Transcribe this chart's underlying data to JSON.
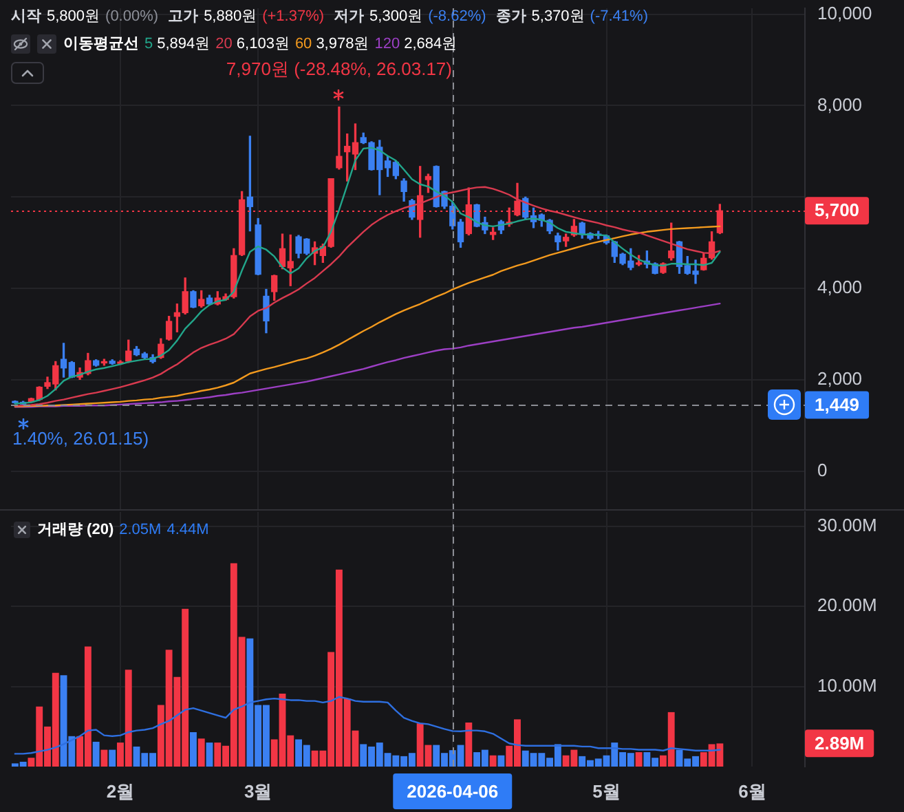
{
  "chart_data": [
    {
      "type": "candlestick",
      "categories": [
        null,
        null,
        null,
        null,
        null,
        null,
        null,
        null,
        null,
        null,
        null,
        null,
        null,
        null,
        null,
        null,
        null,
        null,
        null,
        null,
        null,
        null,
        null,
        null,
        null,
        null,
        null,
        null,
        null,
        null,
        null,
        null,
        null,
        null,
        null,
        null,
        null,
        null,
        null,
        null,
        null,
        null,
        null,
        null,
        null,
        null,
        null,
        null,
        null,
        null,
        null,
        null,
        null,
        null,
        null,
        null,
        null,
        null,
        null,
        null,
        null,
        null,
        null,
        null,
        null,
        null,
        null,
        null,
        null,
        null,
        null,
        null,
        null,
        null,
        null,
        null,
        null,
        null,
        null,
        null,
        null,
        null,
        null,
        null,
        null,
        null,
        null,
        null,
        null,
        null,
        null,
        null,
        null,
        null,
        null,
        null,
        null,
        null
      ],
      "ohlc": [
        [
          1520,
          1540,
          1490,
          1500
        ],
        [
          1510,
          1530,
          1413,
          1470
        ],
        [
          1520,
          1600,
          1510,
          1590
        ],
        [
          1570,
          1850,
          1550,
          1840
        ],
        [
          1860,
          2060,
          1810,
          1940
        ],
        [
          1910,
          2400,
          1780,
          2310
        ],
        [
          2450,
          2800,
          2060,
          2260
        ],
        [
          2380,
          2400,
          2050,
          2060
        ],
        [
          2060,
          2260,
          2010,
          2160
        ],
        [
          2140,
          2580,
          2110,
          2420
        ],
        [
          2420,
          2440,
          2300,
          2320
        ],
        [
          2370,
          2450,
          2320,
          2380
        ],
        [
          2410,
          2440,
          2340,
          2360
        ],
        [
          2360,
          2420,
          2340,
          2390
        ],
        [
          2410,
          2870,
          2380,
          2630
        ],
        [
          2670,
          2730,
          2530,
          2550
        ],
        [
          2570,
          2600,
          2470,
          2490
        ],
        [
          2490,
          2550,
          2370,
          2400
        ],
        [
          2490,
          2900,
          2470,
          2780
        ],
        [
          2890,
          3390,
          2870,
          3280
        ],
        [
          3390,
          3660,
          3050,
          3470
        ],
        [
          3470,
          4230,
          3440,
          3930
        ],
        [
          3930,
          3950,
          3580,
          3590
        ],
        [
          3620,
          3950,
          3590,
          3760
        ],
        [
          3790,
          3850,
          3640,
          3660
        ],
        [
          3660,
          3930,
          3640,
          3790
        ],
        [
          3760,
          3880,
          3740,
          3820
        ],
        [
          3820,
          4870,
          3790,
          4720
        ],
        [
          4740,
          6120,
          4720,
          5940
        ],
        [
          6000,
          7330,
          5260,
          5790
        ],
        [
          5390,
          5530,
          4300,
          4310
        ],
        [
          3830,
          3980,
          3030,
          3290
        ],
        [
          3930,
          4290,
          3740,
          4280
        ],
        [
          4480,
          5190,
          4430,
          4870
        ],
        [
          4450,
          5170,
          4060,
          4590
        ],
        [
          5130,
          5160,
          4670,
          4770
        ],
        [
          5080,
          5090,
          4740,
          4770
        ],
        [
          4770,
          5020,
          4520,
          4890
        ],
        [
          4720,
          4970,
          4570,
          4920
        ],
        [
          4920,
          6400,
          4900,
          6400
        ],
        [
          6640,
          7970,
          6610,
          6890
        ],
        [
          6990,
          7380,
          6350,
          7110
        ],
        [
          6940,
          7600,
          6600,
          7190
        ],
        [
          7300,
          7400,
          7170,
          7190
        ],
        [
          7190,
          7210,
          6590,
          6600
        ],
        [
          7090,
          7240,
          6050,
          6600
        ],
        [
          6790,
          6890,
          6450,
          6640
        ],
        [
          6760,
          6790,
          6400,
          6470
        ],
        [
          6350,
          6400,
          5910,
          6120
        ],
        [
          5920,
          5950,
          5510,
          5560
        ],
        [
          5510,
          6670,
          5120,
          6030
        ],
        [
          6380,
          6500,
          6100,
          6450
        ],
        [
          6670,
          6680,
          5780,
          5790
        ],
        [
          6120,
          6130,
          5750,
          5800
        ],
        [
          5800,
          5880,
          5300,
          5370
        ],
        [
          5450,
          5510,
          4900,
          5020
        ],
        [
          5200,
          6200,
          5170,
          5830
        ],
        [
          5830,
          5840,
          5350,
          5360
        ],
        [
          5440,
          5560,
          5200,
          5280
        ],
        [
          5180,
          5330,
          5070,
          5230
        ],
        [
          5460,
          5490,
          5200,
          5280
        ],
        [
          5410,
          5760,
          5360,
          5450
        ],
        [
          5610,
          6300,
          5590,
          5910
        ],
        [
          5970,
          6000,
          5510,
          5560
        ],
        [
          5590,
          5760,
          5330,
          5460
        ],
        [
          5610,
          5630,
          5360,
          5490
        ],
        [
          5490,
          5510,
          5200,
          5260
        ],
        [
          5150,
          5210,
          4840,
          5020
        ],
        [
          5040,
          5190,
          4920,
          5120
        ],
        [
          5170,
          5510,
          5140,
          5360
        ],
        [
          5430,
          5450,
          5100,
          5200
        ],
        [
          5200,
          5220,
          5070,
          5100
        ],
        [
          5170,
          5250,
          5090,
          5160
        ],
        [
          5150,
          5170,
          4970,
          5000
        ],
        [
          5020,
          5030,
          4570,
          4700
        ],
        [
          4750,
          4770,
          4520,
          4550
        ],
        [
          4600,
          4870,
          4410,
          4460
        ],
        [
          4530,
          4720,
          4500,
          4560
        ],
        [
          4600,
          4820,
          4450,
          4530
        ],
        [
          4540,
          4560,
          4320,
          4330
        ],
        [
          4350,
          4560,
          4330,
          4540
        ],
        [
          4670,
          5430,
          4620,
          4820
        ],
        [
          5020,
          5030,
          4330,
          4480
        ],
        [
          4500,
          4700,
          4310,
          4330
        ],
        [
          4380,
          4620,
          4110,
          4310
        ],
        [
          4410,
          4760,
          4400,
          4660
        ],
        [
          4670,
          5240,
          4640,
          5020
        ],
        [
          5220,
          5840,
          5200,
          5700
        ],
        null,
        null,
        null,
        null,
        null,
        null,
        null,
        null,
        null,
        null
      ],
      "colors": [
        "#3b80f2",
        "#3b80f2",
        "#f23645",
        "#f23645",
        "#f23645",
        "#f23645",
        "#3b80f2",
        "#3b80f2",
        "#f23645",
        "#f23645",
        "#3b80f2",
        "#f23645",
        "#3b80f2",
        "#f23645",
        "#f23645",
        "#3b80f2",
        "#3b80f2",
        "#3b80f2",
        "#f23645",
        "#f23645",
        "#f23645",
        "#f23645",
        "#3b80f2",
        "#f23645",
        "#3b80f2",
        "#f23645",
        "#f23645",
        "#f23645",
        "#f23645",
        "#3b80f2",
        "#3b80f2",
        "#3b80f2",
        "#f23645",
        "#f23645",
        "#f23645",
        "#3b80f2",
        "#3b80f2",
        "#f23645",
        "#f23645",
        "#f23645",
        "#f23645",
        "#f23645",
        "#f23645",
        "#3b80f2",
        "#3b80f2",
        "#3b80f2",
        "#3b80f2",
        "#3b80f2",
        "#3b80f2",
        "#3b80f2",
        "#f23645",
        "#f23645",
        "#3b80f2",
        "#3b80f2",
        "#3b80f2",
        "#3b80f2",
        "#f23645",
        "#3b80f2",
        "#3b80f2",
        "#f23645",
        "#3b80f2",
        "#f23645",
        "#f23645",
        "#3b80f2",
        "#3b80f2",
        "#3b80f2",
        "#3b80f2",
        "#3b80f2",
        "#f23645",
        "#f23645",
        "#3b80f2",
        "#3b80f2",
        "#3b80f2",
        "#3b80f2",
        "#3b80f2",
        "#3b80f2",
        "#3b80f2",
        "#f23645",
        "#3b80f2",
        "#3b80f2",
        "#f23645",
        "#f23645",
        "#3b80f2",
        "#3b80f2",
        "#3b80f2",
        "#f23645",
        "#f23645",
        "#f23645",
        null,
        null,
        null,
        null,
        null,
        null,
        null,
        null,
        null,
        null
      ],
      "series": [
        {
          "type": "line",
          "name": "5",
          "color": "#22a68b",
          "values": [
            1480,
            1490,
            1510,
            1560,
            1650,
            1800,
            1980,
            2070,
            2110,
            2180,
            2230,
            2260,
            2300,
            2340,
            2390,
            2420,
            2450,
            2460,
            2530,
            2650,
            2860,
            3120,
            3300,
            3500,
            3640,
            3720,
            3750,
            3930,
            4390,
            4800,
            4920,
            4850,
            4700,
            4460,
            4330,
            4440,
            4660,
            4820,
            4900,
            5240,
            5720,
            6260,
            6800,
            7060,
            7080,
            7020,
            6900,
            6800,
            6600,
            6390,
            6280,
            6230,
            6120,
            6030,
            5894,
            5640,
            5560,
            5450,
            5380,
            5360,
            5390,
            5420,
            5470,
            5510,
            5530,
            5500,
            5440,
            5320,
            5240,
            5210,
            5180,
            5180,
            5170,
            5160,
            5010,
            4870,
            4740,
            4630,
            4560,
            4510,
            4500,
            4540,
            4540,
            4530,
            4530,
            4510,
            4560,
            4800,
            null,
            null,
            null,
            null,
            null,
            null,
            null,
            null,
            null,
            null
          ]
        },
        {
          "type": "line",
          "name": "20",
          "color": "#d93a4f",
          "values": [
            1430,
            1440,
            1450,
            1470,
            1500,
            1540,
            1570,
            1610,
            1650,
            1690,
            1720,
            1760,
            1800,
            1840,
            1890,
            1940,
            1990,
            2050,
            2130,
            2240,
            2340,
            2470,
            2600,
            2700,
            2770,
            2830,
            2900,
            3000,
            3190,
            3390,
            3510,
            3570,
            3690,
            3790,
            3880,
            3980,
            4110,
            4230,
            4380,
            4530,
            4700,
            4900,
            5070,
            5240,
            5390,
            5510,
            5610,
            5690,
            5760,
            5810,
            5860,
            5930,
            6000,
            6070,
            6103,
            6140,
            6180,
            6210,
            6220,
            6180,
            6120,
            6050,
            5950,
            5880,
            5810,
            5750,
            5700,
            5660,
            5610,
            5560,
            5510,
            5470,
            5430,
            5380,
            5340,
            5290,
            5250,
            5220,
            5160,
            5100,
            5040,
            4980,
            4920,
            4860,
            4820,
            4780,
            4770,
            4820,
            null,
            null,
            null,
            null,
            null,
            null,
            null,
            null,
            null,
            null
          ]
        },
        {
          "type": "line",
          "name": "60",
          "color": "#f39a1e",
          "values": [
            1420,
            1420,
            1430,
            1430,
            1440,
            1440,
            1450,
            1460,
            1470,
            1480,
            1490,
            1500,
            1510,
            1520,
            1540,
            1550,
            1570,
            1580,
            1610,
            1630,
            1650,
            1690,
            1720,
            1760,
            1790,
            1830,
            1880,
            1940,
            2040,
            2140,
            2190,
            2240,
            2280,
            2330,
            2380,
            2430,
            2470,
            2530,
            2600,
            2680,
            2770,
            2870,
            2970,
            3070,
            3160,
            3260,
            3350,
            3440,
            3520,
            3590,
            3660,
            3740,
            3820,
            3890,
            3978,
            4050,
            4120,
            4180,
            4240,
            4300,
            4380,
            4440,
            4500,
            4550,
            4610,
            4670,
            4730,
            4780,
            4830,
            4880,
            4930,
            4980,
            5020,
            5060,
            5100,
            5140,
            5180,
            5210,
            5240,
            5260,
            5280,
            5300,
            5310,
            5320,
            5330,
            5340,
            5350,
            5360,
            null,
            null,
            null,
            null,
            null,
            null,
            null,
            null,
            null,
            null
          ]
        },
        {
          "type": "line",
          "name": "120",
          "color": "#9c3fc4",
          "values": [
            1410,
            1410,
            1410,
            1420,
            1420,
            1420,
            1430,
            1430,
            1430,
            1440,
            1440,
            1440,
            1450,
            1460,
            1470,
            1480,
            1490,
            1500,
            1510,
            1530,
            1540,
            1560,
            1580,
            1600,
            1620,
            1650,
            1670,
            1700,
            1720,
            1750,
            1780,
            1810,
            1840,
            1870,
            1900,
            1930,
            1960,
            2000,
            2040,
            2080,
            2120,
            2160,
            2200,
            2240,
            2290,
            2340,
            2390,
            2430,
            2480,
            2520,
            2560,
            2600,
            2640,
            2670,
            2684,
            2710,
            2750,
            2780,
            2810,
            2840,
            2870,
            2900,
            2930,
            2960,
            2990,
            3020,
            3050,
            3080,
            3110,
            3140,
            3160,
            3190,
            3220,
            3250,
            3280,
            3310,
            3340,
            3370,
            3400,
            3430,
            3460,
            3490,
            3520,
            3550,
            3580,
            3610,
            3640,
            3670,
            null,
            null,
            null,
            null,
            null,
            null,
            null,
            null,
            null,
            null
          ]
        }
      ],
      "ylim": [
        -830,
        10130
      ],
      "yticks": [
        0,
        {
          "value": 2000,
          "label": "2,000"
        },
        {
          "value": 4000,
          "label": "4,000"
        },
        {
          "value": 6000,
          "label": null
        },
        {
          "value": 8000,
          "label": "8,000"
        },
        {
          "value": 10000,
          "label": "10,000"
        }
      ],
      "grid": true,
      "legend": "top left",
      "legend_title": "이동평균선",
      "tick_labels": "y",
      "ref_lines": [
        {
          "axis": "y",
          "value": 5700,
          "color": "#f23645",
          "line_style": "dotted"
        },
        {
          "axis": "y",
          "value": 1449,
          "line_style": "dashed"
        }
      ],
      "annotations": [
        "시작",
        "5,800원",
        "(0.00%)",
        "고가",
        "5,880원",
        "(+1.37%)",
        "저가",
        "5,300원",
        "(-8.62%)",
        "종가",
        "5,370원",
        "(-7.41%)",
        "5,894원",
        "6,103원",
        "3,978원",
        "2,684원",
        "7,970원 (-28.48%, 26.03.17)",
        "1.40%, 26.01.15)",
        "5,700",
        "1,449"
      ]
    },
    {
      "type": "bar",
      "title": "거래량 (20)",
      "categories": [
        null,
        null,
        null,
        null,
        null,
        null,
        null,
        null,
        null,
        null,
        null,
        null,
        null,
        "2월",
        null,
        null,
        null,
        null,
        null,
        null,
        null,
        null,
        null,
        null,
        null,
        null,
        null,
        null,
        null,
        null,
        "3월",
        null,
        null,
        null,
        null,
        null,
        null,
        null,
        null,
        null,
        null,
        null,
        null,
        null,
        null,
        null,
        null,
        null,
        null,
        null,
        null,
        null,
        null,
        null,
        "2026-04-06",
        null,
        null,
        null,
        null,
        null,
        null,
        null,
        null,
        null,
        null,
        null,
        null,
        null,
        null,
        null,
        null,
        null,
        null,
        "5월",
        null,
        null,
        null,
        null,
        null,
        null,
        null,
        null,
        null,
        null,
        null,
        null,
        null,
        null,
        null,
        null,
        null,
        "6월",
        null,
        null,
        null,
        null,
        null,
        null
      ],
      "series": [
        {
          "colors": [
            "#3b80f2",
            "#3b80f2",
            "#f23645",
            "#f23645",
            "#f23645",
            "#f23645",
            "#3b80f2",
            "#3b80f2",
            "#f23645",
            "#f23645",
            "#3b80f2",
            "#f23645",
            "#3b80f2",
            "#f23645",
            "#f23645",
            "#3b80f2",
            "#3b80f2",
            "#3b80f2",
            "#f23645",
            "#f23645",
            "#f23645",
            "#f23645",
            "#3b80f2",
            "#f23645",
            "#3b80f2",
            "#f23645",
            "#f23645",
            "#f23645",
            "#f23645",
            "#3b80f2",
            "#3b80f2",
            "#3b80f2",
            "#f23645",
            "#f23645",
            "#f23645",
            "#3b80f2",
            "#3b80f2",
            "#f23645",
            "#f23645",
            "#f23645",
            "#f23645",
            "#f23645",
            "#f23645",
            "#3b80f2",
            "#3b80f2",
            "#3b80f2",
            "#3b80f2",
            "#3b80f2",
            "#3b80f2",
            "#3b80f2",
            "#f23645",
            "#f23645",
            "#3b80f2",
            "#3b80f2",
            "#3b80f2",
            "#3b80f2",
            "#f23645",
            "#3b80f2",
            "#3b80f2",
            "#f23645",
            "#3b80f2",
            "#f23645",
            "#f23645",
            "#3b80f2",
            "#3b80f2",
            "#3b80f2",
            "#3b80f2",
            "#3b80f2",
            "#f23645",
            "#f23645",
            "#3b80f2",
            "#3b80f2",
            "#3b80f2",
            "#3b80f2",
            "#3b80f2",
            "#3b80f2",
            "#3b80f2",
            "#f23645",
            "#3b80f2",
            "#3b80f2",
            "#f23645",
            "#f23645",
            "#3b80f2",
            "#3b80f2",
            "#3b80f2",
            "#f23645",
            "#f23645",
            "#f23645",
            null,
            null,
            null,
            null,
            null,
            null,
            null,
            null,
            null,
            null
          ],
          "values": [
            0.4,
            0.6,
            1.1,
            7.5,
            5.0,
            11.7,
            11.4,
            3.8,
            3.8,
            15.0,
            3.1,
            2.1,
            2.1,
            3.0,
            12.1,
            2.5,
            1.7,
            1.7,
            7.7,
            14.6,
            11.2,
            19.7,
            4.3,
            3.5,
            3.0,
            3.0,
            2.6,
            25.4,
            16.2,
            16.0,
            7.7,
            7.7,
            3.4,
            9.1,
            3.9,
            3.4,
            2.7,
            2.0,
            2.0,
            14.3,
            24.6,
            8.5,
            4.5,
            2.8,
            2.5,
            3.0,
            1.7,
            1.4,
            1.3,
            1.7,
            5.4,
            2.7,
            2.7,
            1.7,
            2.05,
            2.7,
            5.5,
            1.8,
            2.1,
            1.4,
            1.4,
            2.6,
            5.9,
            2.0,
            1.7,
            1.7,
            1.1,
            2.8,
            1.4,
            2.1,
            1.3,
            0.8,
            1.0,
            1.4,
            3.0,
            1.8,
            1.7,
            1.8,
            1.8,
            1.1,
            1.4,
            6.8,
            2.1,
            1.0,
            1.3,
            1.8,
            2.8,
            2.89,
            null,
            null,
            null,
            null,
            null,
            null,
            null,
            null,
            null,
            null
          ]
        },
        {
          "type": "line",
          "color": "#2e6fe0",
          "values": [
            1.6,
            1.6,
            1.7,
            1.9,
            2.1,
            2.4,
            2.8,
            3.3,
            3.8,
            4.5,
            4.6,
            3.9,
            3.8,
            3.9,
            4.3,
            4.5,
            4.6,
            4.8,
            5.3,
            5.7,
            6.4,
            7.1,
            7.3,
            7.0,
            6.7,
            6.4,
            6.1,
            7.1,
            7.5,
            8.0,
            8.2,
            8.4,
            8.5,
            8.4,
            8.3,
            8.3,
            8.2,
            8.2,
            8.0,
            8.2,
            8.7,
            8.5,
            8.2,
            8.1,
            8.1,
            8.1,
            8.0,
            7.0,
            6.1,
            5.7,
            5.4,
            5.3,
            5.0,
            4.7,
            4.44,
            4.4,
            4.5,
            4.5,
            4.4,
            4.1,
            3.5,
            2.9,
            2.7,
            2.6,
            2.6,
            2.6,
            2.6,
            2.6,
            2.6,
            2.6,
            2.5,
            2.5,
            2.3,
            2.3,
            2.3,
            2.2,
            2.2,
            2.1,
            2.1,
            2.1,
            2.0,
            2.3,
            2.2,
            2.1,
            2.0,
            2.0,
            2.0,
            2.1,
            null,
            null,
            null,
            null,
            null,
            null,
            null,
            null,
            null,
            null
          ]
        }
      ],
      "ylim": [
        0,
        31.8
      ],
      "yticks": [
        {
          "value": 10,
          "label": "10.00M"
        },
        {
          "value": 20,
          "label": "20.00M"
        },
        {
          "value": 30,
          "label": "30.00M"
        }
      ],
      "grid": true,
      "ref_lines": [
        {
          "axis": "x",
          "value": "2026-04-06",
          "line_style": "dashed"
        }
      ],
      "annotations": [
        "2.05M",
        "4.44M",
        "2.89M"
      ]
    }
  ]
}
